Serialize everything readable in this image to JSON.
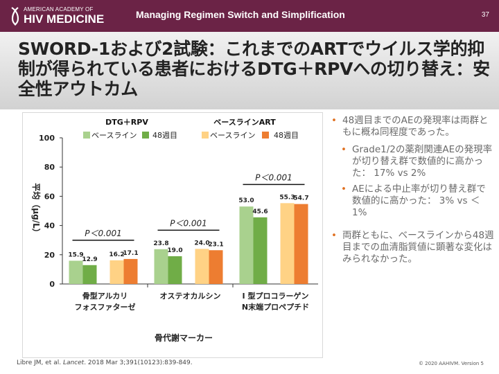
{
  "header": {
    "logo_small": "AMERICAN ACADEMY OF",
    "logo_big": "HIV MEDICINE",
    "title": "Managing Regimen Switch and Simplification",
    "page_number": "37"
  },
  "slide": {
    "title": "SWORD-1および2試験：これまでのARTでウイルス学的抑制が得られている患者におけるDTG＋RPVへの切り替え：安全性アウトカム"
  },
  "chart_data": {
    "type": "bar",
    "group_headers": [
      "DTG＋RPV",
      "ベースラインART"
    ],
    "legend": [
      "ベースライン",
      "48週目",
      "ベースライン",
      "48週目"
    ],
    "categories": [
      "骨型アルカリフォスファターゼ",
      "オステオカルシン",
      "I 型プロコラーゲンN末端プロペプチド"
    ],
    "category_lines": [
      [
        "骨型アルカリ",
        "フォスファターゼ"
      ],
      [
        "オステオカルシン"
      ],
      [
        "I 型プロコラーゲン",
        "N末端プロペプチド"
      ]
    ],
    "series": [
      {
        "name": "DTG＋RPV ベースライン",
        "color": "#a9d18e",
        "values": [
          15.9,
          23.8,
          53.0
        ],
        "labels": [
          "15.9",
          "23.8",
          "53.0"
        ]
      },
      {
        "name": "DTG＋RPV 48週目",
        "color": "#70ad47",
        "values": [
          12.9,
          19.0,
          45.6
        ],
        "labels": [
          "12.9",
          "19.0",
          "45.6"
        ]
      },
      {
        "name": "ベースラインART ベースライン",
        "color": "#ffd285",
        "values": [
          16.2,
          24.0,
          55.3
        ],
        "labels": [
          "16.2",
          "24.0",
          "55.3"
        ]
      },
      {
        "name": "ベースラインART 48週目",
        "color": "#ed7d31",
        "values": [
          17.1,
          23.1,
          54.7
        ],
        "labels": [
          "17.1",
          "23.1",
          "54.7"
        ]
      }
    ],
    "ylim": [
      0,
      100
    ],
    "yticks": [
      "0",
      "20",
      "40",
      "60",
      "80",
      "100"
    ],
    "ylabel": "平均（μg/L）",
    "xlabel": "骨代謝マーカー",
    "annotations": [
      "P＜0.001",
      "P＜0.001",
      "P＜0.001"
    ]
  },
  "bullets": {
    "b1": "48週目までのAEの発現率は両群ともに概ね同程度であった。",
    "b1_sub1": "Grade1/2の薬剤関連AEの発現率が切り替え群で数値的に高かった： 17% vs 2%",
    "b1_sub2": "AEによる中止率が切り替え群で数値的に高かった： 3% vs ＜1%",
    "b2": "両群ともに、ベースラインから48週目までの血清脂質値に顕著な変化はみられなかった。"
  },
  "footer": {
    "ref_prefix": "Libre JM, et al. ",
    "ref_journal": "Lancet",
    "ref_suffix": ". 2018 Mar 3;391(10123):839-849.",
    "copyright": "© 2020 AAHIVM. Version 5"
  },
  "colors": {
    "header_bg": "#6b2346",
    "bullet_dot": "#e07020"
  }
}
